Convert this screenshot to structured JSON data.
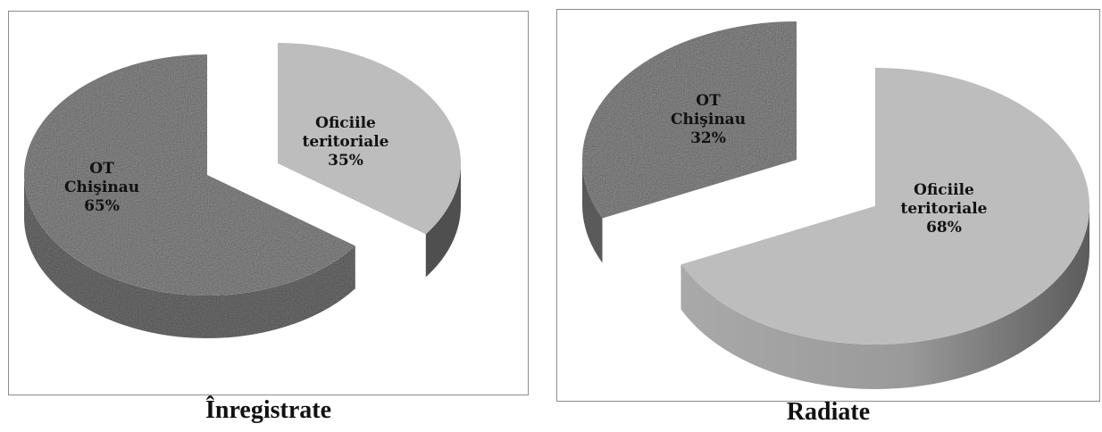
{
  "colors": {
    "speckle_gray": "#8a8a8a",
    "light_gray": "#bdbdbd",
    "dark_gray": "#4f4f4f",
    "border": "#8c8c8c"
  },
  "chart_data": [
    {
      "type": "pie",
      "title": "Înregistrate",
      "categories": [
        "OT Chişinau",
        "Oficiile teritoriale"
      ],
      "values": [
        65,
        35
      ],
      "labels": [
        {
          "lines": [
            "OT",
            "Chişinau",
            "65%"
          ]
        },
        {
          "lines": [
            "Oficiile",
            "teritoriale",
            "35%"
          ]
        }
      ],
      "legend": "none",
      "style": "3d-exploded"
    },
    {
      "type": "pie",
      "title": "Radiate",
      "categories": [
        "OT Chişinau",
        "Oficiile teritoriale"
      ],
      "values": [
        32,
        68
      ],
      "labels": [
        {
          "lines": [
            "OT",
            "Chişinau",
            "32%"
          ]
        },
        {
          "lines": [
            "Oficiile",
            "teritoriale",
            "68%"
          ]
        }
      ],
      "legend": "none",
      "style": "3d-exploded"
    }
  ]
}
